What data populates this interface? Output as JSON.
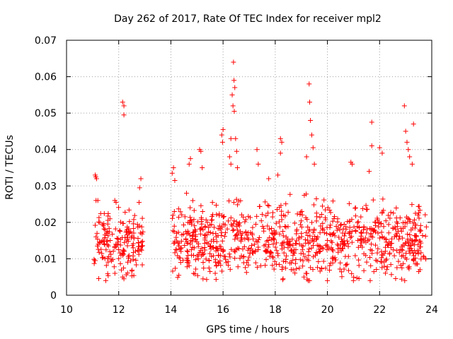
{
  "chart_data": {
    "type": "scatter",
    "title": "Day 262 of 2017, Rate Of TEC Index for receiver mpl2",
    "xlabel": "GPS time / hours",
    "ylabel": "ROTI / TECUs",
    "xlim": [
      10,
      24
    ],
    "ylim": [
      0,
      0.07
    ],
    "xticks": [
      10,
      12,
      14,
      16,
      18,
      20,
      22,
      24
    ],
    "xtick_labels": [
      "10",
      "12",
      "14",
      "16",
      "18",
      "20",
      "22",
      "24"
    ],
    "yticks": [
      0,
      0.01,
      0.02,
      0.03,
      0.04,
      0.05,
      0.06,
      0.07
    ],
    "ytick_labels": [
      "0",
      "0.01",
      "0.02",
      "0.03",
      "0.04",
      "0.05",
      "0.06",
      "0.07"
    ],
    "grid": true,
    "marker": "plus",
    "color": "#ff0000",
    "series": [
      {
        "name": "ROTI",
        "segments": [
          {
            "x_start": 11.05,
            "x_end": 12.95,
            "baseline": 0.014,
            "spread": 0.006
          },
          {
            "x_start": 14.05,
            "x_end": 23.8,
            "baseline": 0.015,
            "spread": 0.007
          }
        ],
        "points": [
          {
            "x": 11.1,
            "y": 0.033
          },
          {
            "x": 11.12,
            "y": 0.0325
          },
          {
            "x": 11.15,
            "y": 0.032
          },
          {
            "x": 11.13,
            "y": 0.026
          },
          {
            "x": 11.2,
            "y": 0.026
          },
          {
            "x": 11.85,
            "y": 0.026
          },
          {
            "x": 11.9,
            "y": 0.0255
          },
          {
            "x": 12.15,
            "y": 0.053
          },
          {
            "x": 12.2,
            "y": 0.052
          },
          {
            "x": 12.2,
            "y": 0.0495
          },
          {
            "x": 12.2,
            "y": 0.0045
          },
          {
            "x": 12.15,
            "y": 0.005
          },
          {
            "x": 12.8,
            "y": 0.0295
          },
          {
            "x": 12.85,
            "y": 0.032
          },
          {
            "x": 12.78,
            "y": 0.0255
          },
          {
            "x": 14.05,
            "y": 0.0335
          },
          {
            "x": 14.1,
            "y": 0.035
          },
          {
            "x": 14.15,
            "y": 0.0315
          },
          {
            "x": 14.7,
            "y": 0.036
          },
          {
            "x": 14.75,
            "y": 0.0375
          },
          {
            "x": 14.6,
            "y": 0.028
          },
          {
            "x": 15.1,
            "y": 0.04
          },
          {
            "x": 15.15,
            "y": 0.0395
          },
          {
            "x": 15.2,
            "y": 0.035
          },
          {
            "x": 15.5,
            "y": 0.0065
          },
          {
            "x": 15.7,
            "y": 0.006
          },
          {
            "x": 15.95,
            "y": 0.044
          },
          {
            "x": 16.0,
            "y": 0.0455
          },
          {
            "x": 15.98,
            "y": 0.042
          },
          {
            "x": 16.25,
            "y": 0.038
          },
          {
            "x": 16.3,
            "y": 0.043
          },
          {
            "x": 16.35,
            "y": 0.055
          },
          {
            "x": 16.38,
            "y": 0.052
          },
          {
            "x": 16.4,
            "y": 0.064
          },
          {
            "x": 16.42,
            "y": 0.059
          },
          {
            "x": 16.45,
            "y": 0.057
          },
          {
            "x": 16.43,
            "y": 0.0505
          },
          {
            "x": 16.48,
            "y": 0.043
          },
          {
            "x": 16.52,
            "y": 0.0395
          },
          {
            "x": 16.3,
            "y": 0.036
          },
          {
            "x": 16.55,
            "y": 0.035
          },
          {
            "x": 17.3,
            "y": 0.04
          },
          {
            "x": 17.35,
            "y": 0.036
          },
          {
            "x": 17.75,
            "y": 0.032
          },
          {
            "x": 18.1,
            "y": 0.033
          },
          {
            "x": 18.2,
            "y": 0.043
          },
          {
            "x": 18.25,
            "y": 0.042
          },
          {
            "x": 18.2,
            "y": 0.039
          },
          {
            "x": 18.3,
            "y": 0.0045
          },
          {
            "x": 19.3,
            "y": 0.058
          },
          {
            "x": 19.32,
            "y": 0.053
          },
          {
            "x": 19.35,
            "y": 0.048
          },
          {
            "x": 19.4,
            "y": 0.044
          },
          {
            "x": 19.45,
            "y": 0.0405
          },
          {
            "x": 19.2,
            "y": 0.038
          },
          {
            "x": 19.5,
            "y": 0.036
          },
          {
            "x": 19.1,
            "y": 0.005
          },
          {
            "x": 20.0,
            "y": 0.004
          },
          {
            "x": 20.9,
            "y": 0.0365
          },
          {
            "x": 20.95,
            "y": 0.036
          },
          {
            "x": 21.7,
            "y": 0.0475
          },
          {
            "x": 21.7,
            "y": 0.041
          },
          {
            "x": 21.6,
            "y": 0.034
          },
          {
            "x": 22.0,
            "y": 0.0405
          },
          {
            "x": 22.1,
            "y": 0.039
          },
          {
            "x": 22.95,
            "y": 0.052
          },
          {
            "x": 23.0,
            "y": 0.045
          },
          {
            "x": 23.05,
            "y": 0.042
          },
          {
            "x": 23.1,
            "y": 0.04
          },
          {
            "x": 23.15,
            "y": 0.038
          },
          {
            "x": 23.3,
            "y": 0.047
          },
          {
            "x": 23.25,
            "y": 0.036
          },
          {
            "x": 23.5,
            "y": 0.0065
          },
          {
            "x": 23.55,
            "y": 0.007
          }
        ]
      }
    ]
  }
}
